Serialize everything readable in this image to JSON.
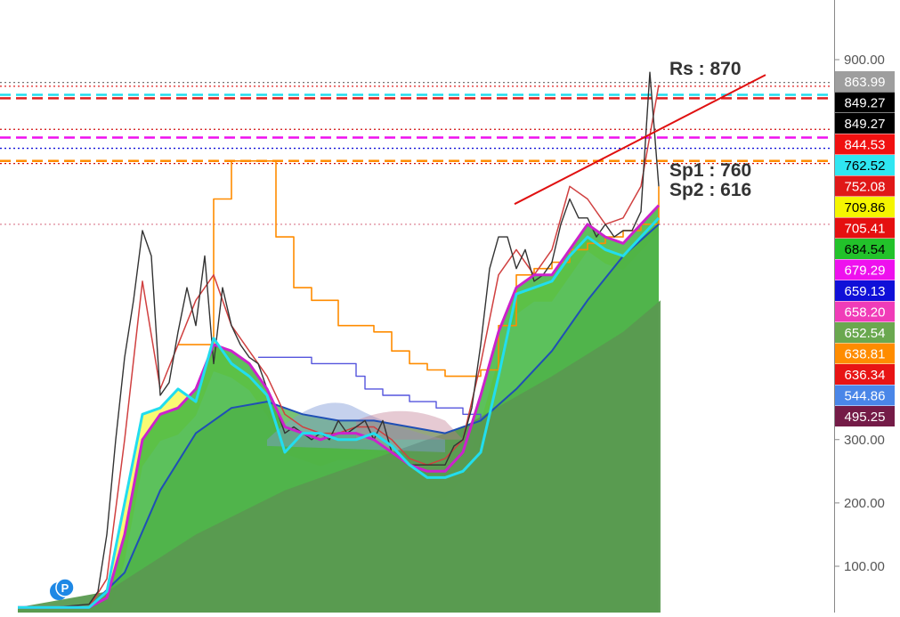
{
  "chart_data": {
    "type": "line",
    "title": "",
    "xlabel": "",
    "ylabel": "",
    "ylim": [
      30,
      960
    ],
    "y_axis": {
      "position": "right",
      "ticks": [
        {
          "value": 100,
          "label": "100.00"
        },
        {
          "value": 200,
          "label": "200.00"
        },
        {
          "value": 300,
          "label": "300.00"
        },
        {
          "value": 900,
          "label": "900.00"
        }
      ]
    },
    "grid": false,
    "legend": "none",
    "price_tags": [
      {
        "label": "863.99",
        "value": 863.99,
        "bg": "#9e9e9e",
        "fg": "#ffffff"
      },
      {
        "label": "849.27",
        "value": 849.27,
        "bg": "#000000",
        "fg": "#ffffff"
      },
      {
        "label": "849.27",
        "value": 849.27,
        "bg": "#000000",
        "fg": "#ffffff"
      },
      {
        "label": "844.53",
        "value": 844.53,
        "bg": "#f01010",
        "fg": "#ffffff"
      },
      {
        "label": "762.52",
        "value": 762.52,
        "bg": "#2fe6f2",
        "fg": "#000000"
      },
      {
        "label": "752.08",
        "value": 752.08,
        "bg": "#e01818",
        "fg": "#ffffff"
      },
      {
        "label": "709.86",
        "value": 709.86,
        "bg": "#f5f500",
        "fg": "#000000"
      },
      {
        "label": "705.41",
        "value": 705.41,
        "bg": "#e51010",
        "fg": "#ffffff"
      },
      {
        "label": "684.54",
        "value": 684.54,
        "bg": "#22c22a",
        "fg": "#000000"
      },
      {
        "label": "679.29",
        "value": 679.29,
        "bg": "#ee10ee",
        "fg": "#ffffff"
      },
      {
        "label": "659.13",
        "value": 659.13,
        "bg": "#1010d8",
        "fg": "#ffffff"
      },
      {
        "label": "658.20",
        "value": 658.2,
        "bg": "#f03cb8",
        "fg": "#ffffff"
      },
      {
        "label": "652.54",
        "value": 652.54,
        "bg": "#6aa84f",
        "fg": "#ffffff"
      },
      {
        "label": "638.81",
        "value": 638.81,
        "bg": "#ff8c00",
        "fg": "#ffffff"
      },
      {
        "label": "636.34",
        "value": 636.34,
        "bg": "#e81414",
        "fg": "#ffffff"
      },
      {
        "label": "544.86",
        "value": 544.86,
        "bg": "#4a86e8",
        "fg": "#ffffff"
      },
      {
        "label": "495.25",
        "value": 495.25,
        "bg": "#741b47",
        "fg": "#ffffff"
      }
    ],
    "annotations": [
      {
        "text": "Rs : 870",
        "value": 870
      },
      {
        "text": "Sp1 : 760",
        "value": 760
      },
      {
        "text": "Sp2 : 616",
        "value": 616
      }
    ],
    "horizontal_levels": [
      {
        "value": 863.99,
        "color": "#777777",
        "style": "dotted"
      },
      {
        "value": 858,
        "color": "#e02020",
        "style": "dotted"
      },
      {
        "value": 844.53,
        "color": "#22ddee",
        "style": "dashed"
      },
      {
        "value": 839,
        "color": "#e02020",
        "style": "dashed"
      },
      {
        "value": 790,
        "color": "#d01010",
        "style": "dotted"
      },
      {
        "value": 777,
        "color": "#ee10ee",
        "style": "dashed"
      },
      {
        "value": 760,
        "color": "#1010d8",
        "style": "dotted"
      },
      {
        "value": 740,
        "color": "#ff8c00",
        "style": "dashed"
      },
      {
        "value": 736,
        "color": "#d01010",
        "style": "dotted"
      },
      {
        "value": 640,
        "color": "#e090a0",
        "style": "dotted"
      }
    ],
    "marker": {
      "label": "P"
    },
    "colors": {
      "price": "#333333",
      "ma_cyan": "#22ddee",
      "ma_magenta": "#cc22cc",
      "ma_blue": "#1f4fb5",
      "ma_red": "#d04040",
      "step_orange": "#ff8c00",
      "step_purple": "#5555dd",
      "trendline": "#e01010",
      "fill_green": "#3fb63f",
      "fill_dark": "#5a9a50",
      "fill_yellow": "#f5f500"
    },
    "series": [
      {
        "role": "price",
        "x": [
          20,
          60,
          100,
          110,
          120,
          130,
          140,
          150,
          160,
          170,
          180,
          190,
          200,
          210,
          220,
          230,
          240,
          250,
          260,
          270,
          280,
          290,
          300,
          310,
          320,
          330,
          340,
          350,
          360,
          370,
          380,
          390,
          400,
          410,
          420,
          430,
          440,
          450,
          460,
          470,
          480,
          490,
          500,
          510,
          520,
          530,
          540,
          550,
          560,
          570,
          580,
          590,
          600,
          610,
          620,
          630,
          640,
          650,
          660,
          670,
          680,
          690,
          700,
          710,
          720,
          730,
          740
        ],
        "values": [
          35,
          35,
          40,
          60,
          150,
          300,
          430,
          520,
          630,
          590,
          370,
          390,
          470,
          540,
          480,
          590,
          420,
          540,
          480,
          450,
          430,
          420,
          380,
          350,
          310,
          320,
          310,
          300,
          310,
          300,
          330,
          310,
          320,
          330,
          300,
          330,
          280,
          270,
          260,
          260,
          260,
          260,
          260,
          290,
          300,
          350,
          450,
          570,
          620,
          620,
          570,
          600,
          550,
          560,
          580,
          640,
          680,
          650,
          650,
          620,
          640,
          620,
          630,
          630,
          660,
          880,
          700
        ]
      },
      {
        "role": "ma_cyan",
        "x": [
          20,
          60,
          100,
          120,
          140,
          160,
          180,
          200,
          220,
          240,
          260,
          280,
          300,
          320,
          340,
          360,
          380,
          400,
          420,
          440,
          460,
          480,
          500,
          520,
          540,
          560,
          580,
          600,
          620,
          640,
          660,
          680,
          700,
          720,
          740
        ],
        "values": [
          35,
          35,
          35,
          60,
          200,
          340,
          350,
          380,
          360,
          460,
          420,
          400,
          370,
          280,
          310,
          310,
          300,
          300,
          310,
          290,
          260,
          240,
          240,
          250,
          280,
          400,
          530,
          540,
          550,
          590,
          620,
          600,
          590,
          620,
          650
        ]
      },
      {
        "role": "ma_magenta",
        "x": [
          20,
          60,
          100,
          120,
          140,
          160,
          180,
          200,
          220,
          240,
          260,
          280,
          300,
          320,
          340,
          360,
          380,
          400,
          420,
          440,
          460,
          480,
          500,
          520,
          540,
          560,
          580,
          600,
          620,
          640,
          660,
          680,
          700,
          720,
          740
        ],
        "values": [
          35,
          35,
          35,
          50,
          150,
          300,
          340,
          350,
          380,
          450,
          440,
          420,
          380,
          320,
          310,
          300,
          310,
          310,
          300,
          280,
          260,
          250,
          250,
          280,
          370,
          470,
          540,
          560,
          560,
          600,
          640,
          620,
          610,
          640,
          670
        ]
      },
      {
        "role": "ma_blue",
        "x": [
          20,
          60,
          100,
          140,
          180,
          220,
          260,
          300,
          340,
          380,
          420,
          460,
          500,
          540,
          580,
          620,
          660,
          700,
          740
        ],
        "values": [
          35,
          35,
          35,
          90,
          220,
          310,
          350,
          360,
          340,
          330,
          330,
          320,
          310,
          330,
          380,
          440,
          520,
          590,
          640
        ]
      },
      {
        "role": "ma_red",
        "x": [
          20,
          60,
          100,
          120,
          140,
          160,
          180,
          200,
          220,
          240,
          260,
          280,
          300,
          320,
          340,
          360,
          380,
          400,
          420,
          440,
          460,
          480,
          500,
          520,
          540,
          560,
          580,
          600,
          620,
          640,
          660,
          680,
          700,
          720,
          740
        ],
        "values": [
          35,
          35,
          35,
          80,
          300,
          550,
          380,
          450,
          520,
          560,
          480,
          440,
          400,
          340,
          320,
          310,
          310,
          320,
          320,
          300,
          270,
          260,
          270,
          300,
          420,
          560,
          600,
          560,
          600,
          700,
          680,
          640,
          650,
          700,
          860
        ]
      },
      {
        "role": "step_orange",
        "x": [
          200,
          230,
          240,
          260,
          290,
          310,
          330,
          350,
          380,
          420,
          440,
          460,
          480,
          500,
          520,
          540,
          560,
          580,
          600,
          620,
          640,
          660,
          680,
          700,
          720,
          740
        ],
        "values": [
          450,
          450,
          680,
          740,
          740,
          620,
          540,
          520,
          480,
          470,
          440,
          420,
          410,
          400,
          400,
          410,
          480,
          560,
          570,
          580,
          600,
          610,
          620,
          630,
          640,
          700
        ]
      },
      {
        "role": "step_purple",
        "x": [
          290,
          320,
          350,
          380,
          400,
          410,
          430,
          460,
          490,
          520,
          540
        ],
        "values": [
          430,
          430,
          420,
          420,
          400,
          380,
          370,
          360,
          350,
          340,
          330
        ]
      },
      {
        "role": "trendline",
        "x": [
          578,
          860
        ],
        "values": [
          672,
          876
        ]
      }
    ]
  }
}
